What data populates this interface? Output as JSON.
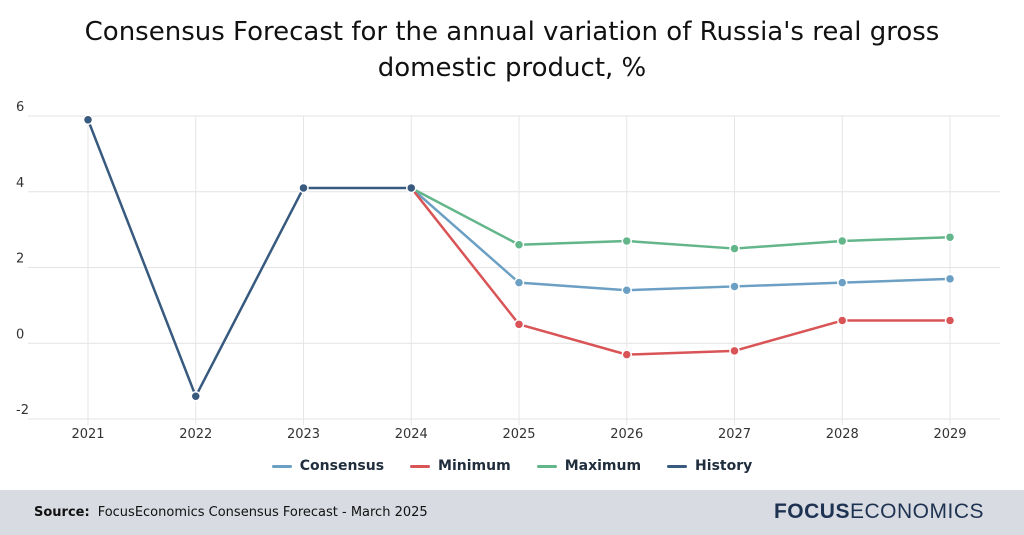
{
  "chart_data": {
    "type": "line",
    "title": "Consensus Forecast for the annual variation of Russia's real gross domestic product, %",
    "categories": [
      "2021",
      "2022",
      "2023",
      "2024",
      "2025",
      "2026",
      "2027",
      "2028",
      "2029"
    ],
    "yticks": [
      "6",
      "4",
      "2",
      "0",
      "-2"
    ],
    "ylim": [
      -2,
      6
    ],
    "grid": true,
    "legend_position": "bottom",
    "series": [
      {
        "name": "Consensus",
        "color": "#6b9fc4",
        "values": [
          null,
          null,
          null,
          4.1,
          1.6,
          1.4,
          1.5,
          1.6,
          1.7
        ]
      },
      {
        "name": "Minimum",
        "color": "#d95456",
        "values": [
          null,
          null,
          null,
          4.1,
          0.5,
          -0.3,
          -0.2,
          0.6,
          0.6
        ]
      },
      {
        "name": "Maximum",
        "color": "#63b58a",
        "values": [
          null,
          null,
          null,
          4.1,
          2.6,
          2.7,
          2.5,
          2.7,
          2.8
        ]
      },
      {
        "name": "History",
        "color": "#385a7f",
        "values": [
          5.9,
          -1.4,
          4.1,
          4.1,
          null,
          null,
          null,
          null,
          null
        ]
      }
    ]
  },
  "footer": {
    "source_label": "Source:",
    "source_text": "FocusEconomics Consensus Forecast - March 2025",
    "brand_a": "FOCUS",
    "brand_b": "ECONOMICS"
  }
}
